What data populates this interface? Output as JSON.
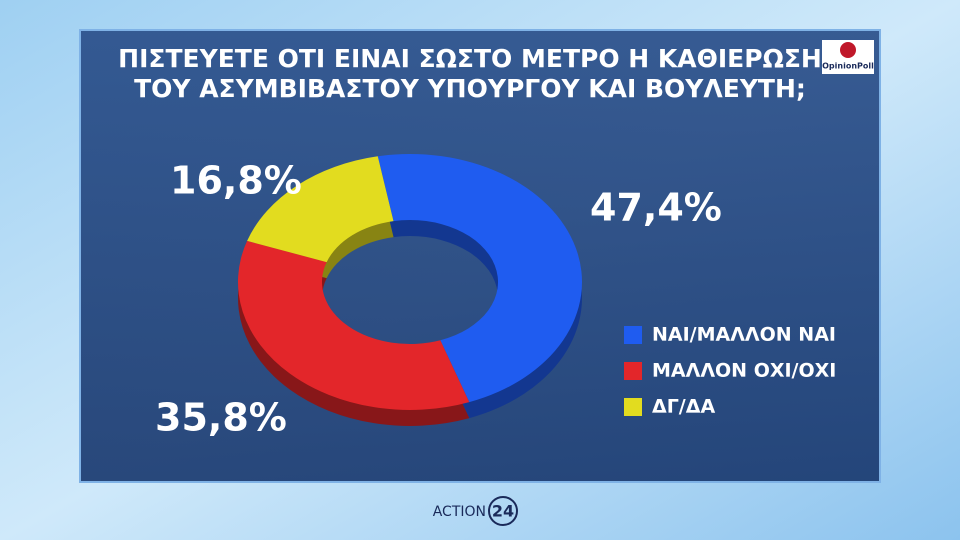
{
  "chart_data": {
    "type": "pie",
    "title": [
      "ΠΙΣΤΕΥΕΤΕ ΟΤΙ ΕΙΝΑΙ ΣΩΣΤΟ ΜΕΤΡΟ Η ΚΑΘΙΕΡΩΣΗ",
      "ΤΟΥ ΑΣΥΜΒΙΒΑΣΤΟΥ ΥΠΟΥΡΓΟΥ ΚΑΙ ΒΟΥΛΕΥΤΗ;"
    ],
    "categories": [
      "ΝΑΙ/ΜΑΛΛΟΝ ΝΑΙ",
      "ΜΑΛΛΟΝ ΟΧΙ/ΟΧΙ",
      "ΔΓ/ΔΑ"
    ],
    "values": [
      47.4,
      35.8,
      16.8
    ],
    "value_labels": [
      "47,4%",
      "35,8%",
      "16,8%"
    ],
    "colors": [
      "#1f5cf0",
      "#e3262a",
      "#e2dc1f"
    ],
    "pollster_logo": "OpinionPoll",
    "channel_logo": [
      "ACTION",
      "24"
    ]
  }
}
